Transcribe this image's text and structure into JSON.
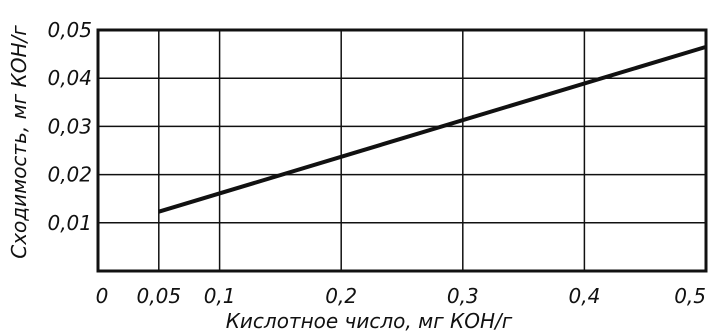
{
  "chart_data": {
    "type": "line",
    "title": "",
    "xlabel": "Кислотное число, мг КОН/г",
    "ylabel": "Сходимость, мг КОН/г",
    "xlim": [
      0,
      0.5
    ],
    "ylim": [
      0,
      0.05
    ],
    "grid": true,
    "x_ticks": [
      0.05,
      0.1,
      0.2,
      0.3,
      0.4,
      0.5
    ],
    "x_tick_labels": [
      "0,05",
      "0,1",
      "0,2",
      "0,3",
      "0,4",
      "0,5"
    ],
    "y_ticks": [
      0.01,
      0.02,
      0.03,
      0.04,
      0.05
    ],
    "y_tick_labels": [
      "0,01",
      "0,02",
      "0,03",
      "0,04",
      "0,05"
    ],
    "origin_label": "0",
    "series": [
      {
        "x": [
          0.05,
          0.5
        ],
        "y": [
          0.0123,
          0.0465
        ],
        "color": "#111111"
      }
    ]
  }
}
